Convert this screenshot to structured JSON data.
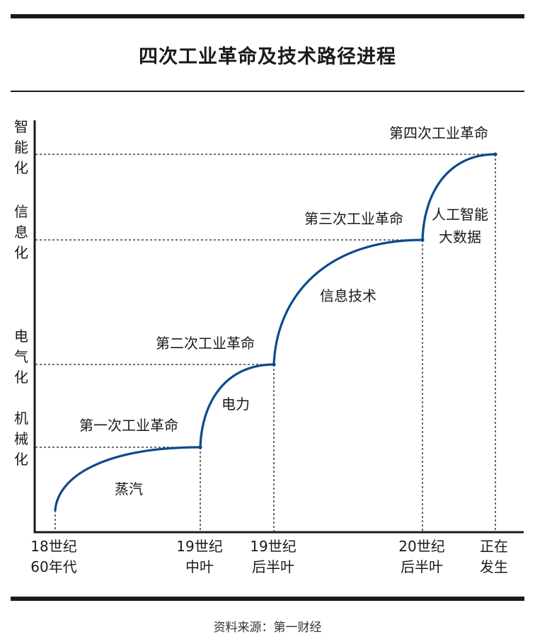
{
  "title": "四次工业革命及技术路径进程",
  "source": "资料来源：第一财经",
  "y_levels": [
    {
      "chars": [
        "机",
        "械",
        "化"
      ]
    },
    {
      "chars": [
        "电",
        "气",
        "化"
      ]
    },
    {
      "chars": [
        "信",
        "息",
        "化"
      ]
    },
    {
      "chars": [
        "智",
        "能",
        "化"
      ]
    }
  ],
  "x_ticks": [
    {
      "lines": [
        "18世纪",
        "60年代"
      ]
    },
    {
      "lines": [
        "19世纪",
        "中叶"
      ]
    },
    {
      "lines": [
        "19世纪",
        "后半叶"
      ]
    },
    {
      "lines": [
        "20世纪",
        "后半叶"
      ]
    },
    {
      "lines": [
        "正在",
        "发生"
      ]
    }
  ],
  "revolutions": [
    {
      "name": "第一次工业革命",
      "tech": [
        "蒸汽"
      ]
    },
    {
      "name": "第二次工业革命",
      "tech": [
        "电力"
      ]
    },
    {
      "name": "第三次工业革命",
      "tech": [
        "信息技术"
      ]
    },
    {
      "name": "第四次工业革命",
      "tech": [
        "人工智能",
        "大数据"
      ]
    }
  ],
  "colors": {
    "curve": "#0e4a8c",
    "ink": "#1a1a1a"
  }
}
